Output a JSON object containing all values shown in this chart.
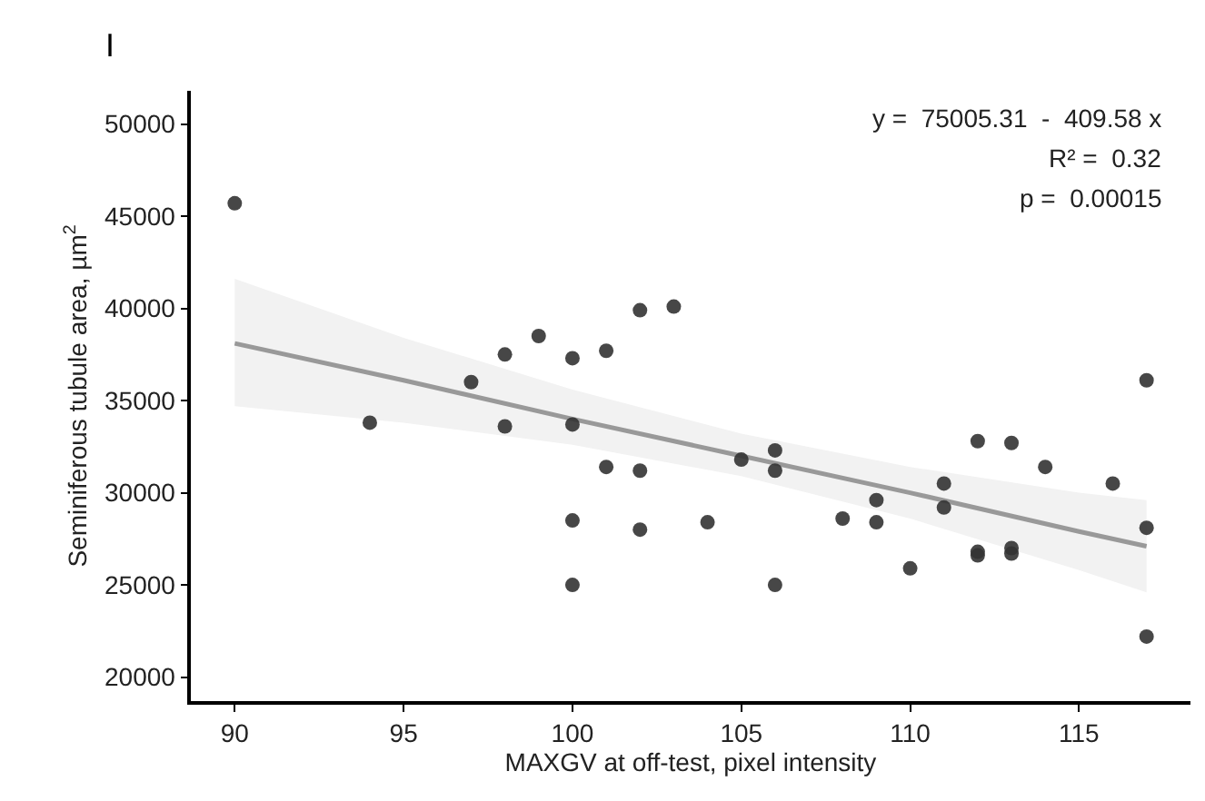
{
  "chart_data": {
    "type": "scatter",
    "xlabel": "MAXGV at off-test, pixel intensity",
    "ylabel": "Seminiferous tubule area, µm$^{2}$",
    "annotations": [
      "I",
      "y =  75005.31  -  409.58 x",
      "R² =  0.32",
      "p =  0.00015"
    ],
    "xlim": [
      88.7,
      118.3
    ],
    "xticks": [
      90,
      95,
      100,
      105,
      110,
      115
    ],
    "ylim": [
      18700,
      51800
    ],
    "yticks": [
      20000,
      25000,
      30000,
      35000,
      40000,
      45000,
      50000
    ],
    "marker": "circle",
    "series": [
      {
        "type": "line",
        "color": "#999999",
        "line_style": "solid",
        "marker": "none",
        "x": [
          90,
          95,
          100,
          105,
          110,
          115,
          117
        ],
        "values": [
          38100,
          36100,
          34000,
          32000,
          30000,
          27900,
          27100
        ],
        "lower": [
          34700,
          33800,
          32600,
          30900,
          28600,
          25800,
          24600
        ],
        "upper": [
          41600,
          38400,
          35600,
          33200,
          31400,
          30000,
          29600
        ]
      },
      {
        "color": "#333333",
        "x": [
          90,
          94,
          97,
          98,
          98,
          99,
          100,
          100,
          100,
          100,
          101,
          101,
          102,
          102,
          102,
          103,
          104,
          105,
          106,
          106,
          106,
          108,
          109,
          109,
          110,
          111,
          111,
          112,
          112,
          112,
          113,
          113,
          113,
          114,
          116,
          117,
          117,
          117
        ],
        "values": [
          45700,
          33800,
          36000,
          37500,
          33600,
          38500,
          37300,
          33700,
          28500,
          25000,
          37700,
          31400,
          39900,
          31200,
          28000,
          40100,
          28400,
          31800,
          32300,
          31200,
          25000,
          28600,
          29600,
          28400,
          25900,
          30500,
          29200,
          32800,
          26800,
          26600,
          32700,
          27000,
          26700,
          31400,
          30500,
          36100,
          28100,
          22200
        ]
      }
    ]
  }
}
